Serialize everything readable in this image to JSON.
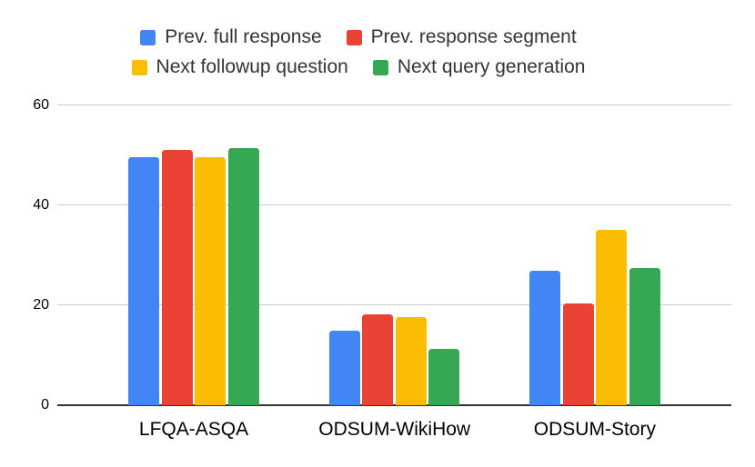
{
  "chart_data": {
    "type": "bar",
    "title": "",
    "xlabel": "",
    "ylabel": "",
    "categories": [
      "LFQA-ASQA",
      "ODSUM-WikiHow",
      "ODSUM-Story"
    ],
    "series": [
      {
        "name": "Prev. full response",
        "color": "#4285F4",
        "values": [
          49.5,
          14.8,
          26.9
        ]
      },
      {
        "name": "Prev. response segment",
        "color": "#EA4335",
        "values": [
          51.0,
          18.2,
          20.4
        ]
      },
      {
        "name": "Next followup question",
        "color": "#FBBC04",
        "values": [
          49.6,
          17.6,
          35.0
        ]
      },
      {
        "name": "Next query generation",
        "color": "#34A853",
        "values": [
          51.3,
          11.3,
          27.5
        ]
      }
    ],
    "ylim": [
      0,
      60
    ],
    "yticks": [
      0,
      20,
      40,
      60
    ],
    "grid": true,
    "legend_position": "top",
    "legend_rows": [
      [
        0,
        1
      ],
      [
        2,
        3
      ]
    ],
    "colors": {
      "gridline": "#cccccc",
      "baseline": "#333333",
      "axis_text": "#000000",
      "legend_text": "#333333",
      "background": "#ffffff"
    }
  }
}
